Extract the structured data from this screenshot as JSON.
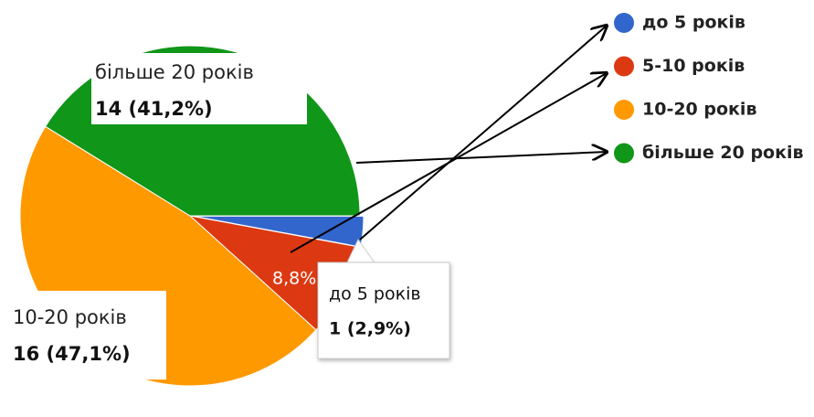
{
  "chart_data": {
    "type": "pie",
    "categories": [
      "до 5 років",
      "5-10 років",
      "10-20 років",
      "більше 20 років"
    ],
    "values": [
      2.9,
      8.8,
      47.1,
      41.2
    ],
    "value_labels": [
      "1 (2,9%)",
      "8,8%",
      "16 (47,1%)",
      "14 (41,2%)"
    ],
    "colors": [
      "#3366cc",
      "#dc3912",
      "#ff9900",
      "#109618"
    ],
    "legend": "right"
  }
}
